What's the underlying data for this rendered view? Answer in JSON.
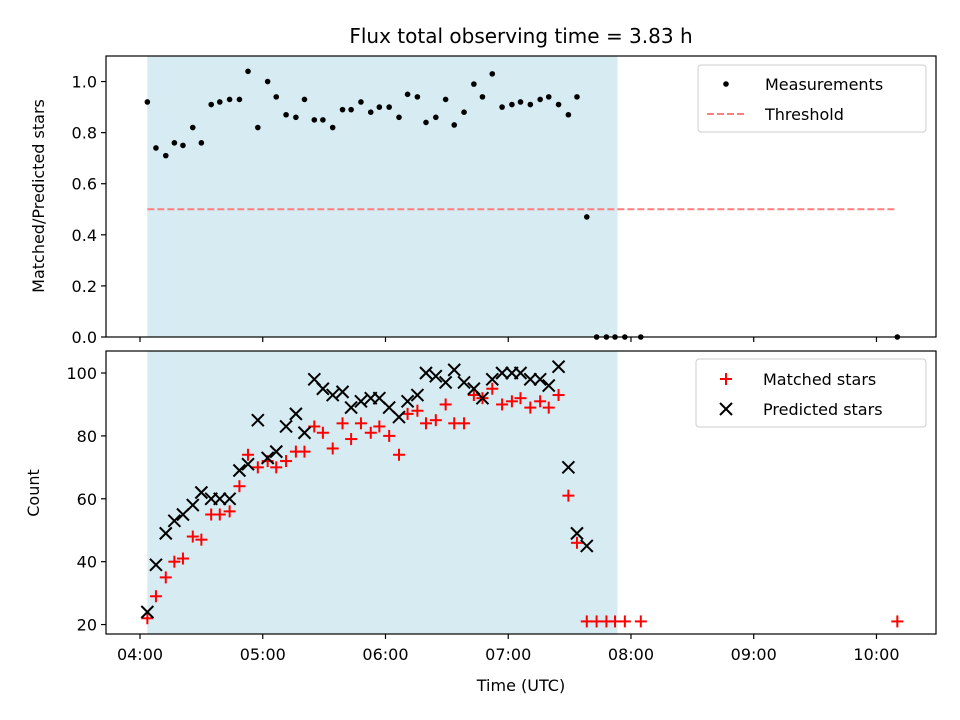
{
  "chart_data": {
    "type": "scatter",
    "title": "Flux total observing time = 3.83 h",
    "xlabel": "Time (UTC)",
    "x_unit": "hours (UTC)",
    "xlim": [
      3.723,
      10.485
    ],
    "xticks": [
      {
        "value": 4,
        "label": "04:00"
      },
      {
        "value": 5,
        "label": "05:00"
      },
      {
        "value": 6,
        "label": "06:00"
      },
      {
        "value": 7,
        "label": "07:00"
      },
      {
        "value": 8,
        "label": "08:00"
      },
      {
        "value": 9,
        "label": "09:00"
      },
      {
        "value": 10,
        "label": "10:00"
      }
    ],
    "shaded_interval": {
      "start": 4.06,
      "end": 7.89,
      "color": "#add8e6"
    },
    "panels": [
      {
        "id": "ratio",
        "ylabel": "Matched/Predicted stars",
        "ylim": [
          0.0,
          1.1
        ],
        "yticks": [
          "0.0",
          "0.2",
          "0.4",
          "0.6",
          "0.8",
          "1.0"
        ],
        "legend_position": "upper right",
        "threshold": {
          "name": "Threshold",
          "value": 0.5,
          "x_start": 4.06,
          "x_end": 10.17,
          "color": "#ff7f7f"
        },
        "series": [
          {
            "name": "Measurements",
            "marker": "dot",
            "color": "#000000",
            "points": [
              [
                4.06,
                0.92
              ],
              [
                4.13,
                0.74
              ],
              [
                4.21,
                0.71
              ],
              [
                4.28,
                0.76
              ],
              [
                4.35,
                0.75
              ],
              [
                4.43,
                0.82
              ],
              [
                4.5,
                0.76
              ],
              [
                4.58,
                0.91
              ],
              [
                4.65,
                0.92
              ],
              [
                4.73,
                0.93
              ],
              [
                4.81,
                0.93
              ],
              [
                4.88,
                1.04
              ],
              [
                4.96,
                0.82
              ],
              [
                5.04,
                1.0
              ],
              [
                5.11,
                0.94
              ],
              [
                5.19,
                0.87
              ],
              [
                5.27,
                0.86
              ],
              [
                5.34,
                0.93
              ],
              [
                5.42,
                0.85
              ],
              [
                5.49,
                0.85
              ],
              [
                5.57,
                0.82
              ],
              [
                5.65,
                0.89
              ],
              [
                5.72,
                0.89
              ],
              [
                5.8,
                0.92
              ],
              [
                5.88,
                0.88
              ],
              [
                5.95,
                0.9
              ],
              [
                6.03,
                0.9
              ],
              [
                6.11,
                0.86
              ],
              [
                6.18,
                0.95
              ],
              [
                6.26,
                0.94
              ],
              [
                6.33,
                0.84
              ],
              [
                6.41,
                0.86
              ],
              [
                6.49,
                0.93
              ],
              [
                6.56,
                0.83
              ],
              [
                6.64,
                0.88
              ],
              [
                6.72,
                0.99
              ],
              [
                6.79,
                0.94
              ],
              [
                6.87,
                1.03
              ],
              [
                6.95,
                0.9
              ],
              [
                7.03,
                0.91
              ],
              [
                7.1,
                0.92
              ],
              [
                7.18,
                0.91
              ],
              [
                7.26,
                0.93
              ],
              [
                7.33,
                0.94
              ],
              [
                7.41,
                0.91
              ],
              [
                7.49,
                0.87
              ],
              [
                7.56,
                0.94
              ],
              [
                7.64,
                0.47
              ],
              [
                7.72,
                0.0
              ],
              [
                7.8,
                0.0
              ],
              [
                7.87,
                0.0
              ],
              [
                7.95,
                0.0
              ],
              [
                8.08,
                0.0
              ],
              [
                10.17,
                0.0
              ]
            ]
          }
        ]
      },
      {
        "id": "counts",
        "ylabel": "Count",
        "ylim": [
          17,
          107
        ],
        "yticks": [
          "20",
          "40",
          "60",
          "80",
          "100"
        ],
        "legend_position": "upper right",
        "series": [
          {
            "name": "Matched stars",
            "marker": "plus",
            "color": "#ff0000",
            "points": [
              [
                4.06,
                22
              ],
              [
                4.13,
                29
              ],
              [
                4.21,
                35
              ],
              [
                4.28,
                40
              ],
              [
                4.35,
                41
              ],
              [
                4.43,
                48
              ],
              [
                4.5,
                47
              ],
              [
                4.58,
                55
              ],
              [
                4.65,
                55
              ],
              [
                4.73,
                56
              ],
              [
                4.81,
                64
              ],
              [
                4.88,
                74
              ],
              [
                4.96,
                70
              ],
              [
                5.04,
                72
              ],
              [
                5.11,
                70
              ],
              [
                5.19,
                72
              ],
              [
                5.27,
                75
              ],
              [
                5.34,
                75
              ],
              [
                5.42,
                83
              ],
              [
                5.49,
                81
              ],
              [
                5.57,
                76
              ],
              [
                5.65,
                84
              ],
              [
                5.72,
                79
              ],
              [
                5.8,
                84
              ],
              [
                5.88,
                81
              ],
              [
                5.95,
                83
              ],
              [
                6.03,
                80
              ],
              [
                6.11,
                74
              ],
              [
                6.18,
                87
              ],
              [
                6.26,
                88
              ],
              [
                6.33,
                84
              ],
              [
                6.41,
                85
              ],
              [
                6.49,
                90
              ],
              [
                6.56,
                84
              ],
              [
                6.64,
                84
              ],
              [
                6.72,
                93
              ],
              [
                6.79,
                92
              ],
              [
                6.87,
                95
              ],
              [
                6.95,
                90
              ],
              [
                7.03,
                91
              ],
              [
                7.1,
                92
              ],
              [
                7.18,
                89
              ],
              [
                7.26,
                91
              ],
              [
                7.33,
                89
              ],
              [
                7.41,
                93
              ],
              [
                7.49,
                61
              ],
              [
                7.56,
                46
              ],
              [
                7.64,
                21
              ],
              [
                7.72,
                21
              ],
              [
                7.8,
                21
              ],
              [
                7.87,
                21
              ],
              [
                7.95,
                21
              ],
              [
                8.08,
                21
              ],
              [
                10.17,
                21
              ]
            ]
          },
          {
            "name": "Predicted stars",
            "marker": "cross",
            "color": "#000000",
            "points": [
              [
                4.06,
                24
              ],
              [
                4.13,
                39
              ],
              [
                4.21,
                49
              ],
              [
                4.28,
                53
              ],
              [
                4.35,
                55
              ],
              [
                4.43,
                58
              ],
              [
                4.5,
                62
              ],
              [
                4.58,
                60
              ],
              [
                4.65,
                60
              ],
              [
                4.73,
                60
              ],
              [
                4.81,
                69
              ],
              [
                4.88,
                71
              ],
              [
                4.96,
                85
              ],
              [
                5.04,
                73
              ],
              [
                5.11,
                75
              ],
              [
                5.19,
                83
              ],
              [
                5.27,
                87
              ],
              [
                5.34,
                81
              ],
              [
                5.42,
                98
              ],
              [
                5.49,
                95
              ],
              [
                5.57,
                93
              ],
              [
                5.65,
                94
              ],
              [
                5.72,
                89
              ],
              [
                5.8,
                91
              ],
              [
                5.88,
                92
              ],
              [
                5.95,
                92
              ],
              [
                6.03,
                89
              ],
              [
                6.11,
                86
              ],
              [
                6.18,
                91
              ],
              [
                6.26,
                93
              ],
              [
                6.33,
                100
              ],
              [
                6.41,
                99
              ],
              [
                6.49,
                97
              ],
              [
                6.56,
                101
              ],
              [
                6.64,
                97
              ],
              [
                6.72,
                95
              ],
              [
                6.79,
                92
              ],
              [
                6.87,
                98
              ],
              [
                6.95,
                100
              ],
              [
                7.03,
                100
              ],
              [
                7.1,
                100
              ],
              [
                7.18,
                98
              ],
              [
                7.26,
                98
              ],
              [
                7.33,
                96
              ],
              [
                7.41,
                102
              ],
              [
                7.49,
                70
              ],
              [
                7.56,
                49
              ],
              [
                7.64,
                45
              ]
            ]
          }
        ]
      }
    ]
  }
}
